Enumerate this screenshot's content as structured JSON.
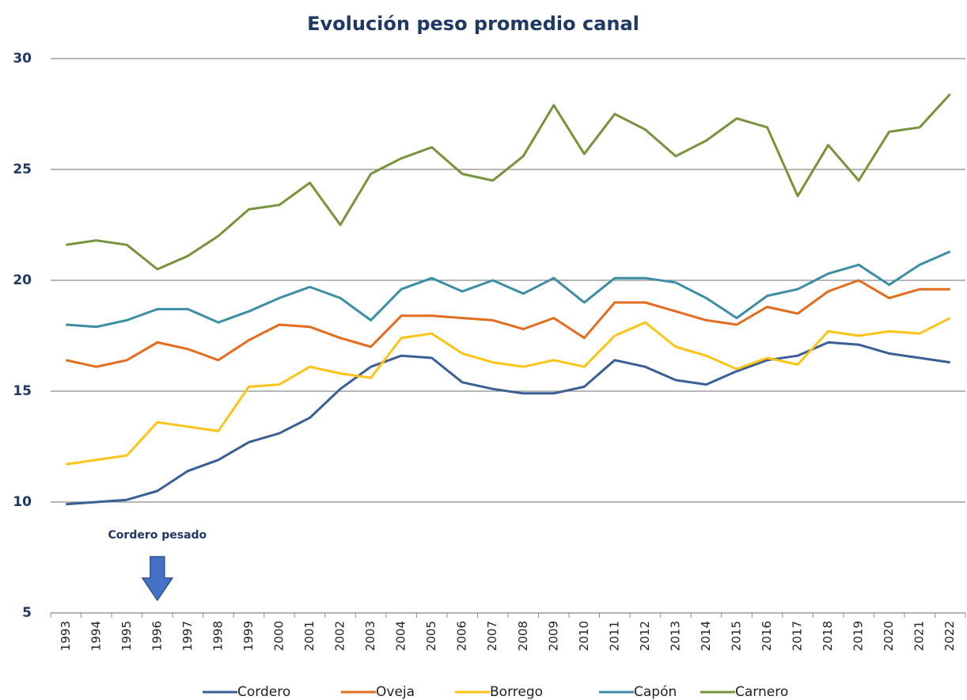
{
  "chart_data": {
    "type": "line",
    "title": "Evolución peso promedio canal",
    "categories": [
      "1993",
      "1994",
      "1995",
      "1996",
      "1997",
      "1998",
      "1999",
      "2000",
      "2001",
      "2002",
      "2003",
      "2004",
      "2005",
      "2006",
      "2007",
      "2008",
      "2009",
      "2010",
      "2011",
      "2012",
      "2013",
      "2014",
      "2015",
      "2016",
      "2017",
      "2018",
      "2019",
      "2020",
      "2021",
      "2022"
    ],
    "series": [
      {
        "name": "Cordero",
        "color": "#3a5f96",
        "values": [
          9.9,
          10.0,
          10.1,
          10.5,
          11.4,
          11.9,
          12.7,
          13.1,
          13.8,
          15.1,
          16.1,
          16.6,
          16.5,
          15.4,
          15.1,
          14.9,
          14.9,
          15.2,
          16.4,
          16.1,
          15.5,
          15.3,
          15.9,
          16.4,
          16.6,
          17.2,
          17.1,
          16.7,
          16.5,
          16.3
        ]
      },
      {
        "name": "Oveja",
        "color": "#e46c1e",
        "values": [
          16.4,
          16.1,
          16.4,
          17.2,
          16.9,
          16.4,
          17.3,
          18.0,
          17.9,
          17.4,
          17.0,
          18.4,
          18.4,
          18.3,
          18.2,
          17.8,
          18.3,
          17.4,
          19.0,
          19.0,
          18.6,
          18.2,
          18.0,
          18.8,
          18.5,
          19.5,
          20.0,
          19.2,
          19.6,
          19.6
        ]
      },
      {
        "name": "Borrego",
        "color": "#fcc417",
        "values": [
          11.7,
          11.9,
          12.1,
          13.6,
          13.4,
          13.2,
          15.2,
          15.3,
          16.1,
          15.8,
          15.6,
          17.4,
          17.6,
          16.7,
          16.3,
          16.1,
          16.4,
          16.1,
          17.5,
          18.1,
          17.0,
          16.6,
          16.0,
          16.5,
          16.2,
          17.7,
          17.5,
          17.7,
          17.6,
          18.3
        ]
      },
      {
        "name": "Capón",
        "color": "#3b8ea5",
        "values": [
          18.0,
          17.9,
          18.2,
          18.7,
          18.7,
          18.1,
          18.6,
          19.2,
          19.7,
          19.2,
          18.2,
          19.6,
          20.1,
          19.5,
          20.0,
          19.4,
          20.1,
          19.0,
          20.1,
          20.1,
          19.9,
          19.2,
          18.3,
          19.3,
          19.6,
          20.3,
          20.7,
          19.8,
          20.7,
          21.3
        ]
      },
      {
        "name": "Carnero",
        "color": "#77933c",
        "values": [
          21.6,
          21.8,
          21.6,
          20.5,
          21.1,
          22.0,
          23.2,
          23.4,
          24.4,
          22.5,
          24.8,
          25.5,
          26.0,
          24.8,
          24.5,
          25.6,
          27.9,
          25.7,
          27.5,
          26.8,
          25.6,
          26.3,
          27.3,
          26.9,
          23.8,
          26.1,
          24.5,
          26.7,
          26.9,
          28.4
        ]
      }
    ],
    "ylim": [
      5,
      30
    ],
    "yticks": [
      5,
      10,
      15,
      20,
      25,
      30
    ],
    "grid": true,
    "annotation": {
      "text": "Cordero pesado",
      "category": 3
    }
  }
}
